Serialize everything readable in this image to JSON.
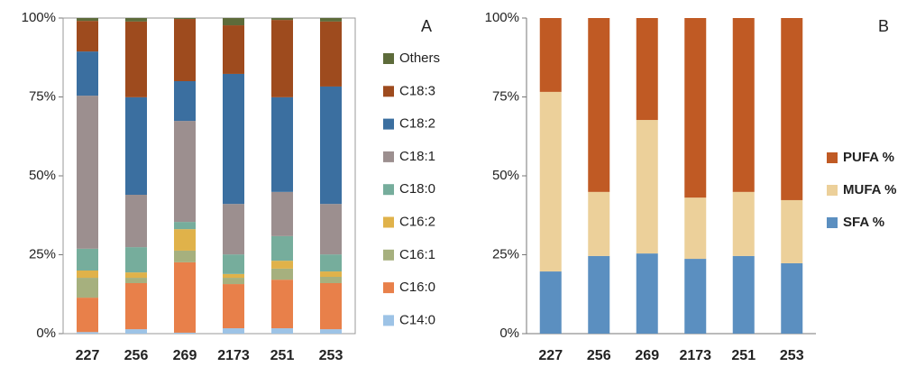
{
  "chart_data": [
    {
      "type": "bar",
      "stacked": true,
      "title": "A",
      "categories": [
        "227",
        "256",
        "269",
        "2173",
        "251",
        "253"
      ],
      "series": [
        {
          "name": "C14:0",
          "color": "#9dc3e6",
          "values": [
            0.5,
            1.4,
            0.3,
            1.7,
            1.7,
            1.4
          ]
        },
        {
          "name": "C16:0",
          "color": "#e8804a",
          "values": [
            10.9,
            14.6,
            22.3,
            14,
            15.4,
            14.6
          ]
        },
        {
          "name": "C16:1",
          "color": "#a6b07e",
          "values": [
            6.3,
            1.7,
            3.7,
            2,
            3.5,
            2
          ]
        },
        {
          "name": "C16:2",
          "color": "#e0b24a",
          "values": [
            2.3,
            1.7,
            6.8,
            1.2,
            2.5,
            1.7
          ]
        },
        {
          "name": "C18:0",
          "color": "#76ad9c",
          "values": [
            6.9,
            8,
            2.3,
            6.2,
            7.8,
            5.4
          ]
        },
        {
          "name": "C18:1",
          "color": "#9c8f8f",
          "values": [
            48.5,
            16.6,
            32,
            16,
            14,
            16
          ]
        },
        {
          "name": "C18:2",
          "color": "#3b6fa0",
          "values": [
            14,
            30.9,
            12.6,
            41.2,
            30,
            37.2
          ]
        },
        {
          "name": "C18:3",
          "color": "#9e4b1e",
          "values": [
            9.7,
            24,
            19.7,
            15.4,
            24.5,
            20.6
          ]
        },
        {
          "name": "Others",
          "color": "#5d6b3a",
          "values": [
            0.9,
            1.1,
            0.3,
            2.3,
            0.6,
            1.1
          ]
        }
      ],
      "ylim": [
        0,
        100
      ],
      "yticks": [
        {
          "value": 0,
          "label": "0%"
        },
        {
          "value": 25,
          "label": "25%"
        },
        {
          "value": 50,
          "label": "50%"
        },
        {
          "value": 75,
          "label": "75%"
        },
        {
          "value": 100,
          "label": "100%"
        }
      ]
    },
    {
      "type": "bar",
      "stacked": true,
      "title": "B",
      "categories": [
        "227",
        "256",
        "269",
        "2173",
        "251",
        "253"
      ],
      "series": [
        {
          "name": "SFA %",
          "color": "#5b8fc0",
          "values": [
            19.7,
            24.6,
            25.4,
            23.7,
            24.6,
            22.3
          ]
        },
        {
          "name": "MUFA %",
          "color": "#ecd09a",
          "values": [
            56.9,
            20.3,
            42.3,
            19.4,
            20.3,
            20
          ]
        },
        {
          "name": "PUFA %",
          "color": "#c05a24",
          "values": [
            23.4,
            55.1,
            32.3,
            56.9,
            55.1,
            57.7
          ]
        }
      ],
      "ylim": [
        0,
        100
      ],
      "yticks": [
        {
          "value": 0,
          "label": "0%"
        },
        {
          "value": 25,
          "label": "25%"
        },
        {
          "value": 50,
          "label": "50%"
        },
        {
          "value": 75,
          "label": "75%"
        },
        {
          "value": 100,
          "label": "100%"
        }
      ]
    }
  ]
}
